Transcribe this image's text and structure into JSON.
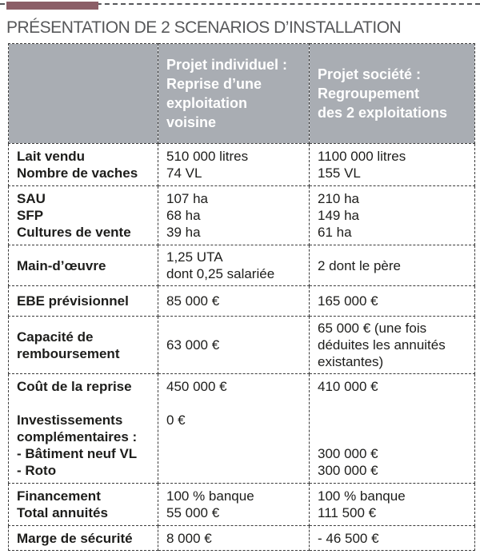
{
  "title": "PRÉSENTATION DE 2 SCENARIOS D’INSTALLATION",
  "colors": {
    "accent_bar": "#8B5E67",
    "header_background": "#A9ADB3",
    "header_text": "#FFFFFF",
    "body_text": "#1D1D1B",
    "border": "#3B3B3B",
    "title_text": "#57585A"
  },
  "table": {
    "columns": [
      {
        "label": ""
      },
      {
        "label": [
          "Projet individuel :",
          "Reprise d’une",
          "exploitation",
          "voisine"
        ]
      },
      {
        "label": [
          "Projet société :",
          "Regroupement",
          "des 2 exploitations"
        ]
      }
    ],
    "rows": [
      {
        "label": [
          "Lait vendu",
          "Nombre de vaches"
        ],
        "individual": [
          "510 000 litres",
          "74 VL"
        ],
        "societe": [
          "1100 000 litres",
          "155 VL"
        ]
      },
      {
        "label": [
          "SAU",
          "SFP",
          "Cultures de vente"
        ],
        "individual": [
          "107 ha",
          "68 ha",
          "39 ha"
        ],
        "societe": [
          "210 ha",
          "149 ha",
          "61 ha"
        ]
      },
      {
        "label": [
          "Main-d’œuvre"
        ],
        "individual": [
          "1,25 UTA",
          "dont 0,25 salariée"
        ],
        "societe": [
          "2 dont le père"
        ]
      },
      {
        "label": [
          "EBE prévisionnel"
        ],
        "individual": [
          "85 000 €"
        ],
        "societe": [
          "165 000 €"
        ]
      },
      {
        "label": [
          "Capacité de",
          "remboursement"
        ],
        "individual": [
          "63 000 €"
        ],
        "societe": [
          "65 000 € (une fois",
          "déduites les annuités",
          "existantes)"
        ]
      },
      {
        "label": [
          "Coût de la reprise",
          "",
          "Investissements",
          "complémentaires :",
          "- Bâtiment neuf VL",
          "- Roto"
        ],
        "individual": [
          "450 000 €",
          "",
          "0 €"
        ],
        "societe": [
          "410 000 €",
          "",
          "",
          "",
          "300 000 €",
          "300 000 €"
        ]
      },
      {
        "label": [
          "Financement",
          "Total annuités"
        ],
        "individual": [
          "100 % banque",
          "55 000 €"
        ],
        "societe": [
          "100 % banque",
          "111 500 €"
        ]
      },
      {
        "label": [
          "Marge de sécurité"
        ],
        "individual": [
          "8 000 €"
        ],
        "societe": [
          "- 46 500 €"
        ]
      }
    ]
  }
}
